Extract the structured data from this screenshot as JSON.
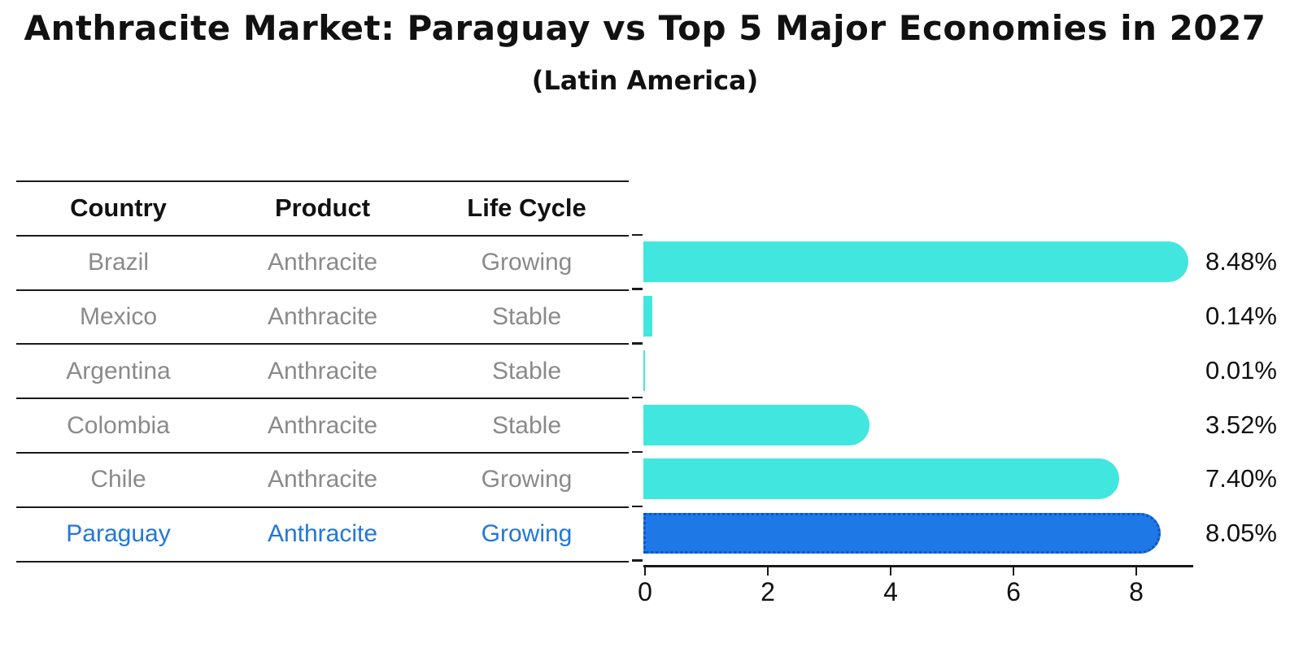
{
  "title": "Anthracite Market: Paraguay vs Top 5 Major Economies in 2027",
  "subtitle": "(Latin America)",
  "table": {
    "headers": [
      "Country",
      "Product",
      "Life Cycle"
    ],
    "rows": [
      {
        "country": "Brazil",
        "product": "Anthracite",
        "life_cycle": "Growing",
        "highlight": false
      },
      {
        "country": "Mexico",
        "product": "Anthracite",
        "life_cycle": "Stable",
        "highlight": false
      },
      {
        "country": "Argentina",
        "product": "Anthracite",
        "life_cycle": "Stable",
        "highlight": false
      },
      {
        "country": "Colombia",
        "product": "Anthracite",
        "life_cycle": "Stable",
        "highlight": false
      },
      {
        "country": "Chile",
        "product": "Anthracite",
        "life_cycle": "Growing",
        "highlight": false
      },
      {
        "country": "Paraguay",
        "product": "Anthracite",
        "life_cycle": "Growing",
        "highlight": true
      }
    ]
  },
  "chart_data": {
    "type": "bar",
    "orientation": "horizontal",
    "title": "Anthracite Market: Paraguay vs Top 5 Major Economies in 2027",
    "subtitle": "(Latin America)",
    "categories": [
      "Brazil",
      "Mexico",
      "Argentina",
      "Colombia",
      "Chile",
      "Paraguay"
    ],
    "values": [
      8.48,
      0.14,
      0.01,
      3.52,
      7.4,
      8.05
    ],
    "value_labels": [
      "8.48%",
      "0.14%",
      "0.01%",
      "3.52%",
      "7.40%",
      "8.05%"
    ],
    "x_ticks": [
      "0",
      "2",
      "4",
      "6",
      "8"
    ],
    "x_tick_values": [
      0,
      2,
      4,
      6,
      8
    ],
    "xlim": [
      0,
      9
    ],
    "grid": false,
    "legend": "none",
    "highlight_index": 5
  },
  "colors": {
    "bar": "#41e7df",
    "highlight_bar": "#1e78e6",
    "highlight_border": "#0d55c8",
    "highlight_text": "#2277d9",
    "row_text": "#8a8a8a",
    "text": "#111111",
    "line": "#1a1a1a"
  }
}
